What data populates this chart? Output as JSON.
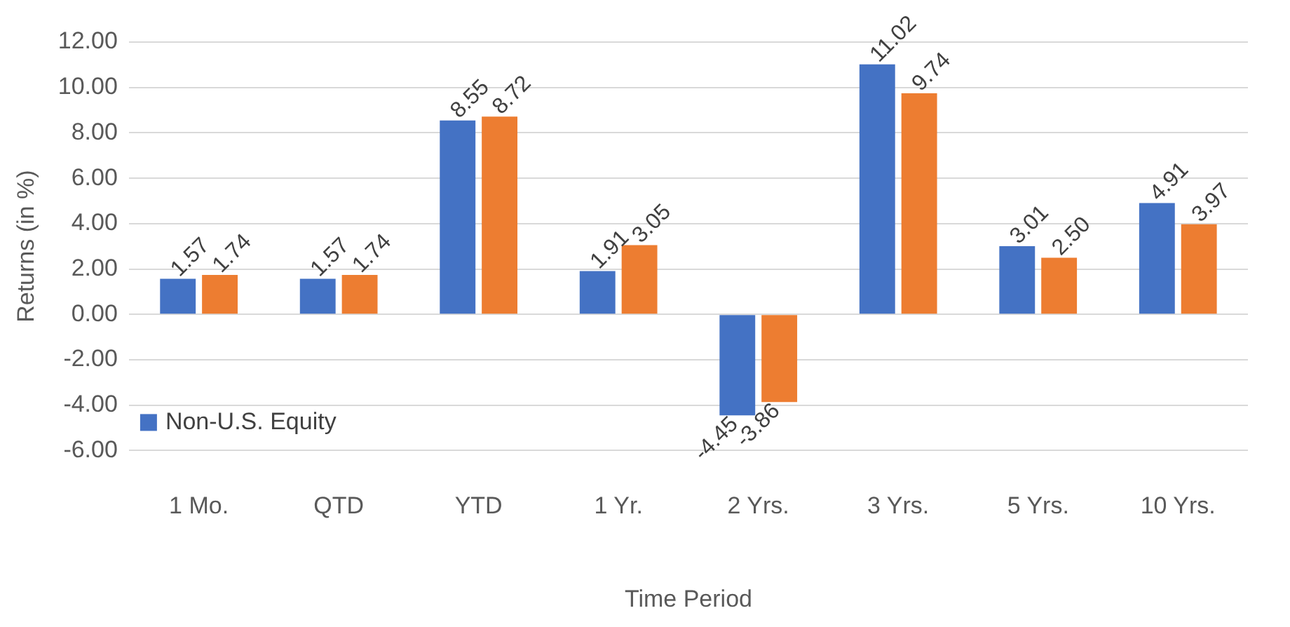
{
  "chart_data": {
    "type": "bar",
    "xlabel": "Time Period",
    "ylabel": "Returns (in %)",
    "categories": [
      "1 Mo.",
      "QTD",
      "YTD",
      "1 Yr.",
      "2 Yrs.",
      "3 Yrs.",
      "5 Yrs.",
      "10 Yrs."
    ],
    "series": [
      {
        "name": "Non-U.S. Equity",
        "color": "#4472c4",
        "values": [
          1.57,
          1.57,
          8.55,
          1.91,
          -4.45,
          11.02,
          3.01,
          4.91
        ],
        "value_labels": [
          "1.57",
          "1.57",
          "8.55",
          "1.91",
          "-4.45",
          "11.02",
          "3.01",
          "4.91"
        ]
      },
      {
        "color": "#ed7d31",
        "values": [
          1.74,
          1.74,
          8.72,
          3.05,
          -3.86,
          9.74,
          2.5,
          3.97
        ],
        "value_labels": [
          "1.74",
          "1.74",
          "8.72",
          "3.05",
          "-3.86",
          "9.74",
          "2.50",
          "3.97"
        ]
      }
    ],
    "ylim": [
      -6,
      12
    ],
    "yticks": [
      {
        "value": -6,
        "label": "-6.00"
      },
      {
        "value": -4,
        "label": "-4.00"
      },
      {
        "value": -2,
        "label": "-2.00"
      },
      {
        "value": 0,
        "label": "0.00"
      },
      {
        "value": 2,
        "label": "2.00"
      },
      {
        "value": 4,
        "label": "4.00"
      },
      {
        "value": 6,
        "label": "6.00"
      },
      {
        "value": 8,
        "label": "8.00"
      },
      {
        "value": 10,
        "label": "10.00"
      },
      {
        "value": 12,
        "label": "12.00"
      }
    ],
    "grid": "y",
    "legend": "bottom left"
  }
}
